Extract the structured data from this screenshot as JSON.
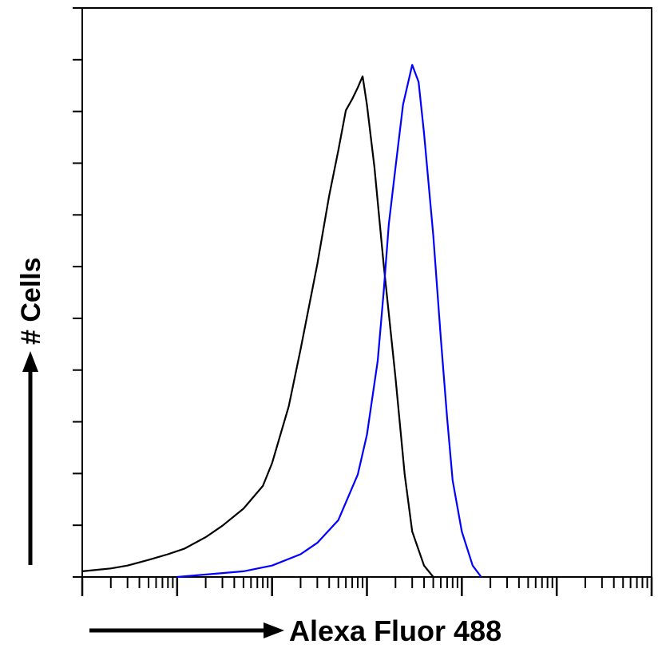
{
  "chart_data": {
    "type": "line",
    "title": "",
    "xlabel": "Alexa Fluor 488",
    "ylabel": "# Cells",
    "x_scale": "log",
    "xlim": [
      1,
      1000000
    ],
    "ylim": [
      0,
      1
    ],
    "grid": false,
    "legend": "none",
    "series": [
      {
        "color": "#000000",
        "x": [
          1,
          2,
          3,
          5,
          8,
          12,
          20,
          30,
          50,
          80,
          100,
          150,
          200,
          300,
          400,
          500,
          600,
          700,
          800,
          900,
          1000,
          1200,
          1500,
          2000,
          2500,
          3000,
          4000,
          5000
        ],
        "y": [
          0.01,
          0.015,
          0.02,
          0.03,
          0.04,
          0.05,
          0.07,
          0.09,
          0.12,
          0.16,
          0.2,
          0.3,
          0.4,
          0.55,
          0.67,
          0.75,
          0.82,
          0.84,
          0.86,
          0.88,
          0.83,
          0.72,
          0.55,
          0.35,
          0.18,
          0.08,
          0.02,
          0.0
        ]
      },
      {
        "color": "#0000ff",
        "x": [
          10,
          50,
          100,
          200,
          300,
          500,
          800,
          1000,
          1300,
          1500,
          1700,
          2000,
          2400,
          3000,
          3500,
          4000,
          5000,
          6000,
          7000,
          8000,
          10000,
          13000,
          16000
        ],
        "y": [
          0.0,
          0.01,
          0.02,
          0.04,
          0.06,
          0.1,
          0.18,
          0.25,
          0.38,
          0.5,
          0.62,
          0.72,
          0.83,
          0.9,
          0.87,
          0.78,
          0.6,
          0.42,
          0.28,
          0.17,
          0.08,
          0.02,
          0.0
        ]
      }
    ]
  }
}
